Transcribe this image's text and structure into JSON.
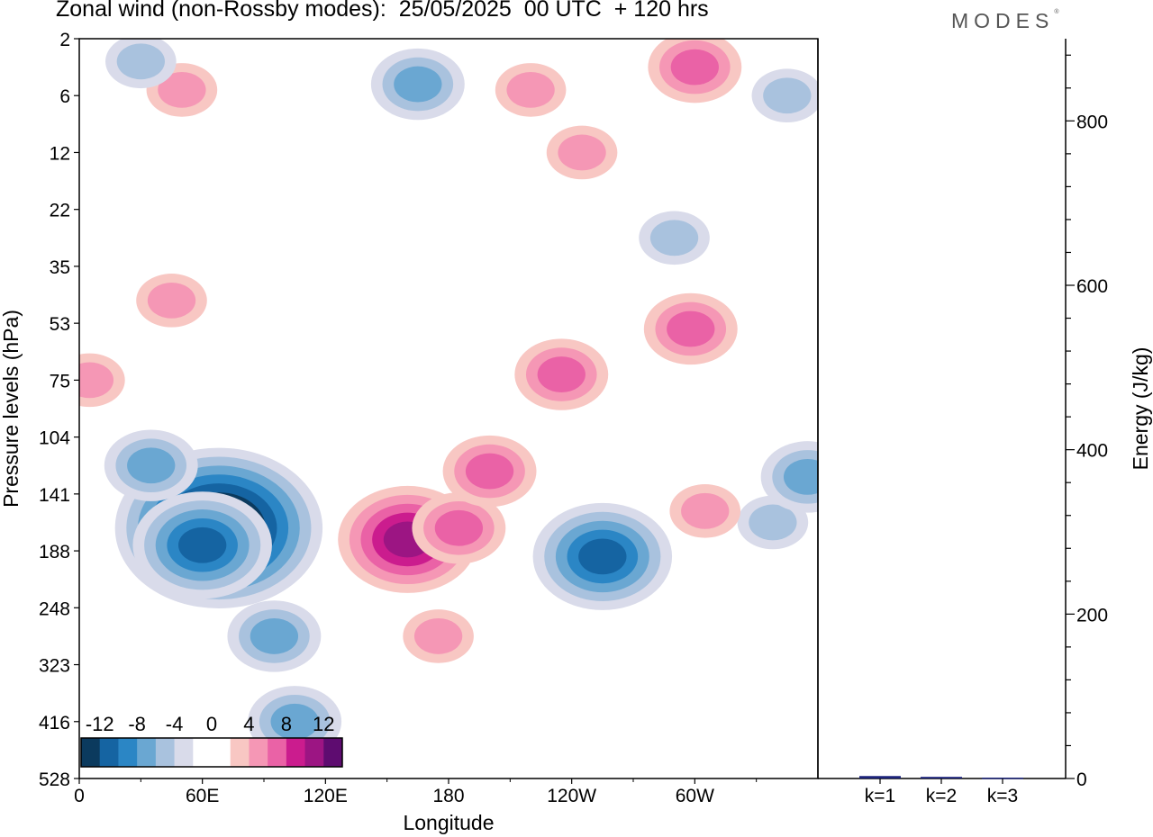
{
  "title": "Zonal wind (non-Rossby modes):  25/05/2025  00 UTC  + 120 hrs",
  "logo_text": "MODES",
  "logo_mark": "®",
  "chart_data": [
    {
      "type": "heatmap",
      "title": "Zonal wind (non-Rossby modes):  25/05/2025  00 UTC  + 120 hrs",
      "xlabel": "Longitude",
      "ylabel": "Pressure levels (hPa)",
      "x_ticks": [
        "0",
        "60E",
        "120E",
        "180",
        "120W",
        "60W"
      ],
      "x_tick_degrees": [
        0,
        60,
        120,
        180,
        240,
        300
      ],
      "xlim": [
        0,
        360
      ],
      "y_ticks": [
        "2",
        "6",
        "12",
        "22",
        "35",
        "53",
        "75",
        "104",
        "141",
        "188",
        "248",
        "323",
        "416",
        "528"
      ],
      "y_scale": "categorical pressure levels, top to bottom",
      "colorbar": {
        "labels": [
          "-12",
          "-8",
          "-4",
          "0",
          "4",
          "8",
          "12"
        ],
        "colors": [
          "#0b3a5e",
          "#1564a2",
          "#2b86c5",
          "#6aa7d2",
          "#a9c2de",
          "#d9dbea",
          "#ffffff",
          "#ffffff",
          "#f8c7c3",
          "#f597b5",
          "#ea62a6",
          "#cb1c8e",
          "#9c1583",
          "#5e0c70"
        ],
        "placement": "bottom-left inside plot"
      },
      "anomalies": [
        {
          "lon": 68,
          "lev": 8.6,
          "value": -15
        },
        {
          "lon": 60,
          "lev": 8.9,
          "value": -10
        },
        {
          "lon": 35,
          "lev": 7.5,
          "value": -5
        },
        {
          "lon": 95,
          "lev": 10.5,
          "value": -6
        },
        {
          "lon": 105,
          "lev": 12.0,
          "value": -5
        },
        {
          "lon": 255,
          "lev": 9.1,
          "value": -9
        },
        {
          "lon": 338,
          "lev": 8.5,
          "value": -4
        },
        {
          "lon": 160,
          "lev": 8.8,
          "value": 9
        },
        {
          "lon": 185,
          "lev": 8.6,
          "value": 6
        },
        {
          "lon": 200,
          "lev": 7.6,
          "value": 6
        },
        {
          "lon": 235,
          "lev": 5.9,
          "value": 6
        },
        {
          "lon": 305,
          "lev": 8.3,
          "value": 4
        },
        {
          "lon": 298,
          "lev": 5.1,
          "value": 5
        },
        {
          "lon": 175,
          "lev": 10.5,
          "value": 3
        },
        {
          "lon": 245,
          "lev": 2.0,
          "value": 3
        },
        {
          "lon": 220,
          "lev": 0.9,
          "value": 3
        },
        {
          "lon": 300,
          "lev": 0.5,
          "value": 6
        },
        {
          "lon": 50,
          "lev": 0.9,
          "value": 3
        },
        {
          "lon": 45,
          "lev": 4.6,
          "value": 4
        },
        {
          "lon": 5,
          "lev": 6.0,
          "value": 3
        },
        {
          "lon": 165,
          "lev": 0.8,
          "value": -5
        },
        {
          "lon": 30,
          "lev": 0.4,
          "value": -4
        },
        {
          "lon": 345,
          "lev": 1.0,
          "value": -4
        },
        {
          "lon": 290,
          "lev": 3.5,
          "value": -3
        },
        {
          "lon": 355,
          "lev": 7.7,
          "value": -5
        }
      ]
    },
    {
      "type": "bar",
      "ylabel": "Energy (J/kg)",
      "categories": [
        "k=1",
        "k=2",
        "k=3"
      ],
      "values": [
        3,
        2,
        1
      ],
      "ylim": [
        0,
        900
      ],
      "y_ticks": [
        0,
        200,
        400,
        600,
        800
      ],
      "bar_color": "#1b237a"
    }
  ]
}
